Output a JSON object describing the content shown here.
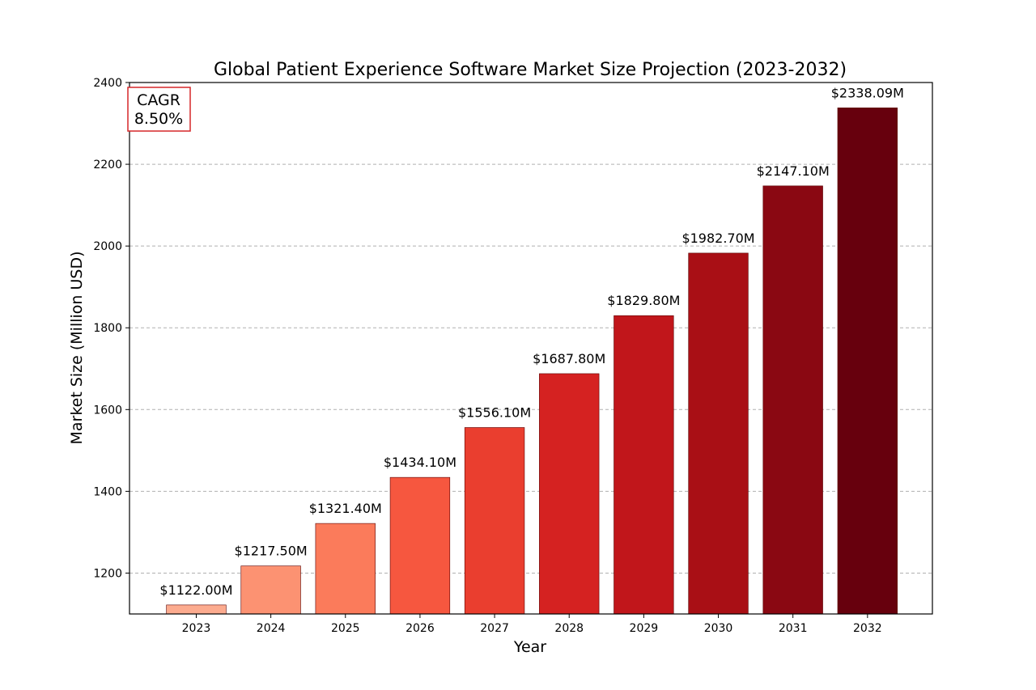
{
  "chart_data": {
    "type": "bar",
    "title": "Global Patient Experience Software Market Size Projection (2023-2032)",
    "xlabel": "Year",
    "ylabel": "Market Size (Million USD)",
    "categories": [
      "2023",
      "2024",
      "2025",
      "2026",
      "2027",
      "2028",
      "2029",
      "2030",
      "2031",
      "2032"
    ],
    "values": [
      1122.0,
      1217.5,
      1321.4,
      1434.1,
      1556.1,
      1687.8,
      1829.8,
      1982.7,
      2147.1,
      2338.09
    ],
    "data_labels": [
      "$1122.00M",
      "$1217.50M",
      "$1321.40M",
      "$1434.10M",
      "$1556.10M",
      "$1687.80M",
      "$1829.80M",
      "$1982.70M",
      "$2147.10M",
      "$2338.09M"
    ],
    "colors": [
      "#fcab8f",
      "#fc9272",
      "#fb7b5b",
      "#f6573f",
      "#ea3e2f",
      "#d52221",
      "#c1161b",
      "#a90f15",
      "#8a0812",
      "#67000d"
    ],
    "ylim": [
      1100,
      2400
    ],
    "yticks": [
      1200,
      1400,
      1600,
      1800,
      2000,
      2200,
      2400
    ],
    "grid": "y-dashed",
    "annotation": {
      "line1": "CAGR",
      "line2": "8.50%",
      "border_color": "#d62728"
    }
  }
}
